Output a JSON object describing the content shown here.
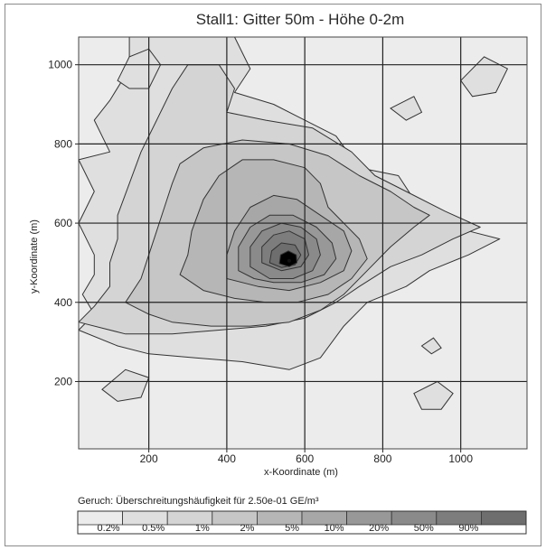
{
  "chart_data": {
    "type": "heatmap",
    "subtype": "contour",
    "title": "Stall1: Gitter 50m - Höhe 0-2m",
    "xlabel": "x-Koordinate (m)",
    "ylabel": "y-Koordinate (m)",
    "xlim": [
      20,
      1170
    ],
    "ylim": [
      30,
      1070
    ],
    "xticks": [
      200,
      400,
      600,
      800,
      1000
    ],
    "yticks": [
      200,
      400,
      600,
      800,
      1000
    ],
    "grid": true,
    "source": [
      560,
      505
    ],
    "legend": {
      "title": "Geruch: Überschreitungshäufigkeit für 2.50e-01 GE/m³",
      "placement": "bottom",
      "levels": [
        "0.2%",
        "0.5%",
        "1%",
        "2%",
        "5%",
        "10%",
        "20%",
        "50%",
        "90%"
      ],
      "colors": [
        "#ececec",
        "#dfdfdf",
        "#d4d4d4",
        "#c6c6c6",
        "#b6b6b6",
        "#a7a7a7",
        "#989898",
        "#8a8a8a",
        "#7d7d7d",
        "#6e6e6e"
      ]
    }
  }
}
